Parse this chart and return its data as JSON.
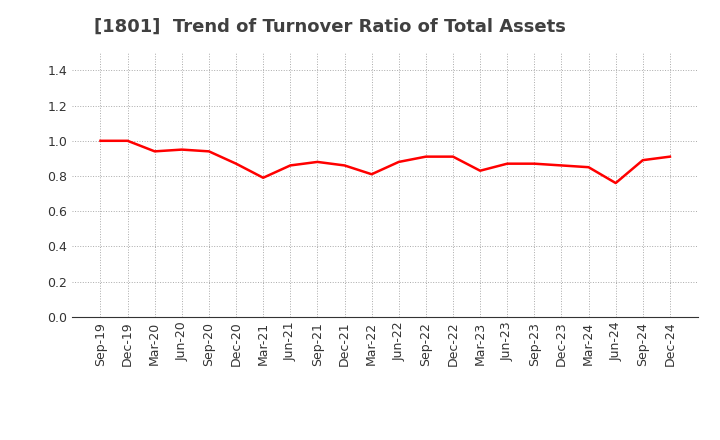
{
  "title": "[1801]  Trend of Turnover Ratio of Total Assets",
  "x_labels": [
    "Sep-19",
    "Dec-19",
    "Mar-20",
    "Jun-20",
    "Sep-20",
    "Dec-20",
    "Mar-21",
    "Jun-21",
    "Sep-21",
    "Dec-21",
    "Mar-22",
    "Jun-22",
    "Sep-22",
    "Dec-22",
    "Mar-23",
    "Jun-23",
    "Sep-23",
    "Dec-23",
    "Mar-24",
    "Jun-24",
    "Sep-24",
    "Dec-24"
  ],
  "values": [
    1.0,
    1.0,
    0.94,
    0.95,
    0.94,
    0.87,
    0.79,
    0.86,
    0.88,
    0.86,
    0.81,
    0.88,
    0.91,
    0.91,
    0.83,
    0.87,
    0.87,
    0.86,
    0.85,
    0.76,
    0.89,
    0.91
  ],
  "line_color": "#FF0000",
  "line_width": 1.8,
  "ylim": [
    0.0,
    1.5
  ],
  "yticks": [
    0.0,
    0.2,
    0.4,
    0.6,
    0.8,
    1.0,
    1.2,
    1.4
  ],
  "grid_color": "#aaaaaa",
  "background_color": "#ffffff",
  "title_fontsize": 13,
  "tick_fontsize": 9,
  "title_color": "#404040"
}
